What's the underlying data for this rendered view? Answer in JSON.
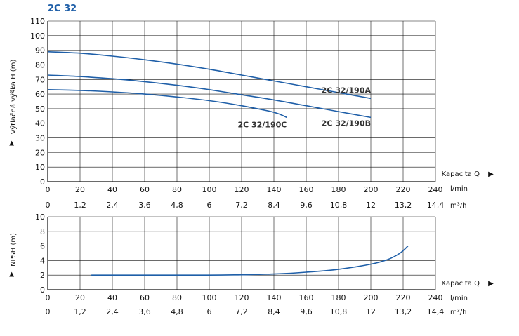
{
  "header": {
    "title": "2C 32"
  },
  "colors": {
    "title": "#1f5fa8",
    "curve": "#1f5fa8",
    "grid": "#111111",
    "text": "#111111"
  },
  "chart_data": [
    {
      "type": "line",
      "title": "",
      "xlabel": "Kapacita Q",
      "ylabel": "Výtlačná výška H (m)",
      "xlim": [
        0,
        240
      ],
      "ylim": [
        0,
        110
      ],
      "x_ticks": [
        0,
        20,
        40,
        60,
        80,
        100,
        120,
        140,
        160,
        180,
        200,
        220,
        240
      ],
      "y_ticks": [
        0,
        10,
        20,
        30,
        40,
        50,
        60,
        70,
        80,
        90,
        100,
        110
      ],
      "x_unit": "l/min",
      "x2_unit": "m³/h",
      "x2_ticks": [
        "0",
        "1,2",
        "2,4",
        "3,6",
        "4,8",
        "6",
        "7,2",
        "8,4",
        "9,6",
        "10,8",
        "12",
        "13,2",
        "14,4"
      ],
      "grid": true,
      "series": [
        {
          "name": "2C 32/190A",
          "points": [
            [
              0,
              89
            ],
            [
              20,
              88
            ],
            [
              40,
              86
            ],
            [
              60,
              83.5
            ],
            [
              80,
              80.5
            ],
            [
              100,
              77
            ],
            [
              120,
              73
            ],
            [
              140,
              69
            ],
            [
              160,
              65
            ],
            [
              180,
              61
            ],
            [
              200,
              57
            ]
          ]
        },
        {
          "name": "2C 32/190B",
          "points": [
            [
              0,
              73
            ],
            [
              20,
              72
            ],
            [
              40,
              70.5
            ],
            [
              60,
              68.5
            ],
            [
              80,
              66
            ],
            [
              100,
              63
            ],
            [
              120,
              59.5
            ],
            [
              140,
              56
            ],
            [
              160,
              52
            ],
            [
              180,
              48
            ],
            [
              200,
              44
            ]
          ]
        },
        {
          "name": "2C 32/190C",
          "points": [
            [
              0,
              63
            ],
            [
              20,
              62.5
            ],
            [
              40,
              61.5
            ],
            [
              60,
              60
            ],
            [
              80,
              58
            ],
            [
              100,
              55.5
            ],
            [
              120,
              52
            ],
            [
              140,
              47.5
            ],
            [
              148,
              44
            ]
          ]
        }
      ]
    },
    {
      "type": "line",
      "title": "",
      "xlabel": "Kapacita Q",
      "ylabel": "NPSH (m)",
      "xlim": [
        0,
        240
      ],
      "ylim": [
        0,
        10
      ],
      "x_ticks": [
        0,
        20,
        40,
        60,
        80,
        100,
        120,
        140,
        160,
        180,
        200,
        220,
        240
      ],
      "y_ticks": [
        0,
        2,
        4,
        6,
        8,
        10
      ],
      "x_unit": "l/min",
      "x2_unit": "m³/h",
      "x2_ticks": [
        "0",
        "1,2",
        "2,4",
        "3,6",
        "4,8",
        "6",
        "7,2",
        "8,4",
        "9,6",
        "10,8",
        "12",
        "13,2",
        "14,4"
      ],
      "grid": true,
      "series": [
        {
          "points": [
            [
              27,
              2
            ],
            [
              60,
              2
            ],
            [
              100,
              2
            ],
            [
              120,
              2.05
            ],
            [
              140,
              2.15
            ],
            [
              160,
              2.4
            ],
            [
              180,
              2.8
            ],
            [
              200,
              3.5
            ],
            [
              210,
              4.1
            ],
            [
              218,
              5
            ],
            [
              223,
              6
            ]
          ]
        }
      ]
    }
  ]
}
